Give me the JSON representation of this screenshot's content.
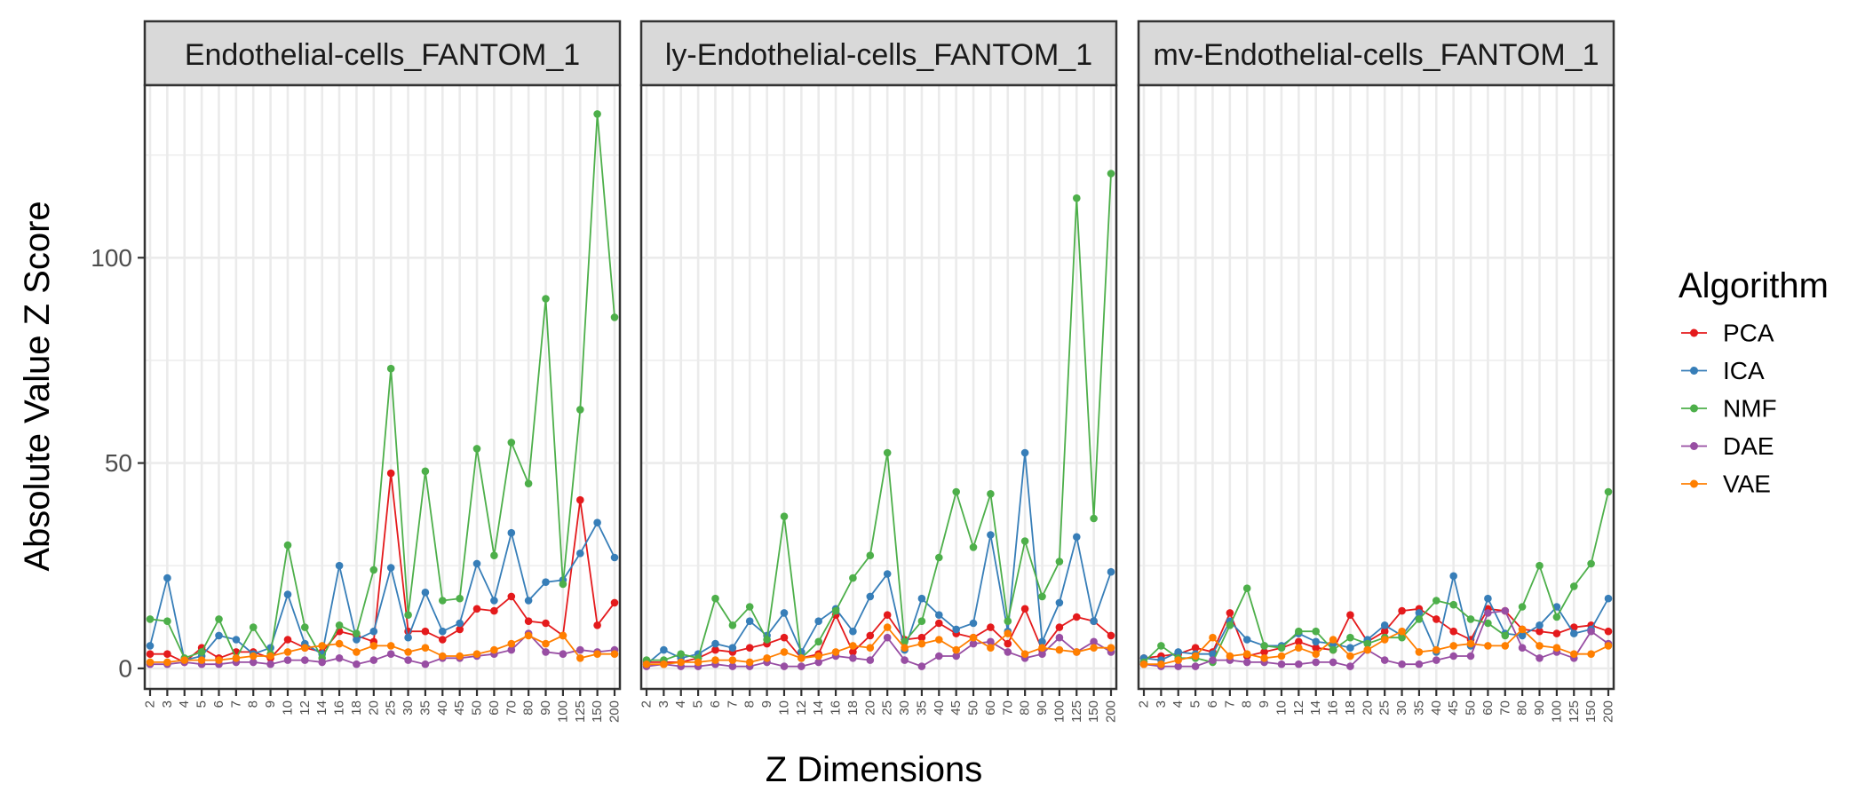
{
  "chart_data": {
    "type": "line",
    "xlabel": "Z Dimensions",
    "ylabel": "Absolute Value Z Score",
    "ylim": [
      -5,
      142
    ],
    "y_ticks": [
      0,
      50,
      100
    ],
    "grid": true,
    "legend": {
      "title": "Algorithm",
      "position": "right"
    },
    "categories": [
      "2",
      "3",
      "4",
      "5",
      "6",
      "7",
      "8",
      "9",
      "10",
      "12",
      "14",
      "16",
      "18",
      "20",
      "25",
      "30",
      "35",
      "40",
      "45",
      "50",
      "60",
      "70",
      "80",
      "90",
      "100",
      "125",
      "150",
      "200"
    ],
    "colors": {
      "PCA": "#e41a1c",
      "ICA": "#377eb8",
      "NMF": "#4daf4a",
      "DAE": "#984ea3",
      "VAE": "#ff7f00"
    },
    "panels": [
      {
        "title": "Endothelial-cells_FANTOM_1",
        "series": [
          {
            "name": "PCA",
            "values": [
              3.5,
              3.5,
              1.5,
              5,
              2.5,
              4,
              4,
              2.5,
              7,
              5,
              4,
              9,
              8,
              6.5,
              47.5,
              9,
              9,
              7,
              9.5,
              14.5,
              14,
              17.5,
              11.5,
              11,
              8,
              41,
              10.5,
              16
            ]
          },
          {
            "name": "ICA",
            "values": [
              5.5,
              22,
              2,
              3,
              8,
              7,
              3.5,
              5,
              18,
              6,
              3.5,
              25,
              7,
              9,
              24.5,
              7.5,
              18.5,
              9,
              11,
              25.5,
              16.5,
              33,
              16.5,
              21,
              21.5,
              28,
              35.5,
              27
            ]
          },
          {
            "name": "NMF",
            "values": [
              12,
              11.5,
              2.5,
              4,
              12,
              2.5,
              10,
              3.5,
              30,
              10,
              2.5,
              10.5,
              8.5,
              24,
              73,
              13,
              48,
              16.5,
              17,
              53.5,
              27.5,
              55,
              45,
              90,
              20.5,
              63,
              135,
              85.5
            ]
          },
          {
            "name": "DAE",
            "values": [
              1,
              1,
              1.5,
              1,
              1,
              1.5,
              1.5,
              1,
              2,
              2,
              1.5,
              2.5,
              1,
              2,
              3.5,
              2,
              1,
              2.5,
              2.5,
              3,
              3.5,
              4.5,
              8.5,
              4,
              3.5,
              4.5,
              4,
              4.5
            ]
          },
          {
            "name": "VAE",
            "values": [
              1.5,
              1.5,
              2,
              2,
              2,
              2.5,
              3,
              3,
              4,
              5,
              5.5,
              6,
              4,
              5.5,
              5.5,
              4,
              5,
              3,
              3,
              3.5,
              4.5,
              6,
              8,
              6,
              8,
              2.5,
              3.5,
              3.5
            ]
          }
        ]
      },
      {
        "title": "ly-Endothelial-cells_FANTOM_1",
        "series": [
          {
            "name": "PCA",
            "values": [
              1.5,
              1.5,
              1.5,
              2.5,
              4.5,
              4,
              5,
              6,
              7.5,
              2.5,
              3.5,
              13,
              4,
              8,
              13,
              7,
              7.5,
              11,
              8.5,
              7.5,
              10,
              6,
              14.5,
              4.5,
              10,
              12.5,
              11.5,
              8
            ]
          },
          {
            "name": "ICA",
            "values": [
              1,
              4.5,
              2.5,
              3.5,
              6,
              5,
              11.5,
              8,
              13.5,
              4,
              11.5,
              14.5,
              9,
              17.5,
              23,
              4.5,
              17,
              13,
              9.5,
              11,
              32.5,
              9,
              52.5,
              6.5,
              16,
              32,
              11.5,
              23.5
            ]
          },
          {
            "name": "NMF",
            "values": [
              2,
              2,
              3.5,
              2.5,
              17,
              10.5,
              15,
              7,
              37,
              2.5,
              6.5,
              14,
              22,
              27.5,
              52.5,
              6.5,
              11.5,
              27,
              43,
              29.5,
              42.5,
              11.5,
              31,
              17.5,
              26,
              114.5,
              36.5,
              120.5
            ]
          },
          {
            "name": "DAE",
            "values": [
              0.5,
              1,
              0.5,
              0.5,
              1,
              0.5,
              0.5,
              1.5,
              0.5,
              0.5,
              1.5,
              3,
              2.5,
              2,
              7.5,
              2,
              0.5,
              3,
              3,
              6,
              6.5,
              4,
              2.5,
              3.5,
              7.5,
              4,
              6.5,
              4
            ]
          },
          {
            "name": "VAE",
            "values": [
              1,
              1,
              1.5,
              1.5,
              2,
              2,
              1.5,
              2.5,
              4,
              2.5,
              3,
              4,
              5.5,
              5,
              10,
              5,
              6,
              7,
              4.5,
              7.5,
              5,
              8.5,
              3.5,
              5,
              4.5,
              4,
              5,
              5
            ]
          }
        ]
      },
      {
        "title": "mv-Endothelial-cells_FANTOM_1",
        "series": [
          {
            "name": "PCA",
            "values": [
              2.5,
              3,
              3.5,
              5,
              4,
              13.5,
              3,
              4,
              5,
              6.5,
              5,
              4.5,
              13,
              6.5,
              9,
              14,
              14.5,
              12,
              9,
              7,
              14.5,
              14,
              9.5,
              9,
              8.5,
              10,
              10.5,
              9
            ]
          },
          {
            "name": "ICA",
            "values": [
              2.5,
              2,
              4,
              3.5,
              3.5,
              11.5,
              7,
              5.5,
              5.5,
              8.5,
              6.5,
              6,
              5,
              7,
              10.5,
              8,
              13.5,
              4,
              22.5,
              5.5,
              17,
              8.5,
              8,
              10.5,
              15,
              8.5,
              9.5,
              17
            ]
          },
          {
            "name": "NMF",
            "values": [
              1.5,
              5.5,
              2.5,
              2.5,
              1.5,
              10.5,
              19.5,
              5.5,
              5,
              9,
              9,
              4.5,
              7.5,
              6,
              7.5,
              7.5,
              12,
              16.5,
              15.5,
              12,
              11,
              8,
              15,
              25,
              12.5,
              20,
              25.5,
              43
            ]
          },
          {
            "name": "DAE",
            "values": [
              1,
              0.5,
              0.5,
              0.5,
              2,
              2,
              1.5,
              1.5,
              1,
              1,
              1.5,
              1.5,
              0.5,
              4.5,
              2,
              1,
              1,
              2,
              3,
              3,
              13.5,
              14,
              5,
              2.5,
              4,
              2.5,
              9,
              6
            ]
          },
          {
            "name": "VAE",
            "values": [
              1,
              1,
              2,
              3,
              7.5,
              3,
              3.5,
              2.5,
              3,
              5,
              3.5,
              7,
              3,
              4.5,
              7,
              9,
              4,
              4.5,
              5.5,
              6,
              5.5,
              5.5,
              9.5,
              5.5,
              5,
              3.5,
              3.5,
              5.5
            ]
          }
        ]
      }
    ]
  }
}
